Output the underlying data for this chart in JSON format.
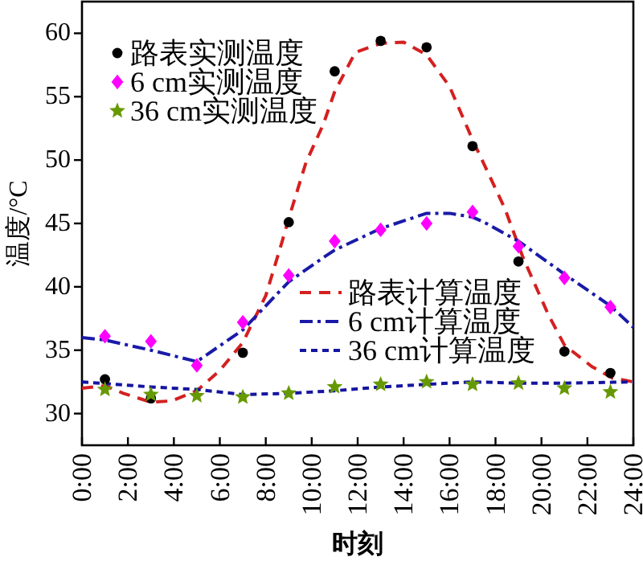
{
  "chart_data": {
    "type": "line",
    "xlabel": "时刻",
    "ylabel": "温度/°C",
    "xlim": [
      0,
      24
    ],
    "xticks": [
      {
        "value": 0,
        "label": "0:00"
      },
      {
        "value": 2,
        "label": "2:00"
      },
      {
        "value": 4,
        "label": "4:00"
      },
      {
        "value": 6,
        "label": "6:00"
      },
      {
        "value": 8,
        "label": "8:00"
      },
      {
        "value": 10,
        "label": "10:00"
      },
      {
        "value": 12,
        "label": "12:00"
      },
      {
        "value": 14,
        "label": "14:00"
      },
      {
        "value": 16,
        "label": "16:00"
      },
      {
        "value": 18,
        "label": "18:00"
      },
      {
        "value": 20,
        "label": "20:00"
      },
      {
        "value": 22,
        "label": "22:00"
      },
      {
        "value": 24,
        "label": "24:00"
      }
    ],
    "ylim": [
      27.5,
      62.5
    ],
    "yticks": [
      30,
      35,
      40,
      45,
      50,
      55,
      60
    ],
    "legend": [
      "top left",
      "bottom right"
    ],
    "x": [
      1,
      3,
      5,
      7,
      9,
      11,
      13,
      15,
      17,
      19,
      21,
      23
    ],
    "series": [
      {
        "name": "路表实测温度",
        "type": "scatter",
        "marker": "circle",
        "color": "#000000",
        "values": [
          32.7,
          31.2,
          null,
          34.8,
          45.1,
          57.0,
          59.4,
          58.9,
          51.1,
          42.0,
          34.9,
          33.2
        ]
      },
      {
        "name": "6 cm实测温度",
        "type": "scatter",
        "marker": "diamond",
        "color": "#ff00ff",
        "values": [
          36.1,
          35.7,
          33.8,
          37.2,
          40.9,
          43.6,
          44.5,
          45.0,
          45.9,
          43.2,
          40.7,
          38.4
        ]
      },
      {
        "name": "36 cm实测温度",
        "type": "scatter",
        "marker": "star",
        "color": "#669900",
        "values": [
          31.9,
          31.5,
          31.4,
          31.3,
          31.6,
          32.1,
          32.3,
          32.5,
          32.3,
          32.4,
          32.0,
          31.7
        ]
      },
      {
        "name": "路表计算温度",
        "line_style": "dashed",
        "color": "#d42020",
        "x": [
          0,
          1,
          1.8,
          3,
          3.9,
          5,
          6,
          7,
          8,
          8.7,
          9,
          9.75,
          10.5,
          11,
          11.9,
          13,
          14,
          15,
          16,
          17,
          18.4,
          19.2,
          20.3,
          21,
          22.2,
          23.1,
          24
        ],
        "values": [
          32.0,
          32.2,
          31.6,
          30.9,
          31.0,
          31.8,
          33.4,
          35.6,
          39.3,
          43.5,
          45.4,
          49.8,
          52.8,
          55.4,
          58.5,
          59.2,
          59.3,
          58.3,
          55.8,
          51.6,
          46.2,
          42.3,
          37.8,
          35.4,
          33.7,
          32.8,
          32.5
        ]
      },
      {
        "name": "6 cm计算温度",
        "line_style": "dashdot",
        "color": "#1a1aa8",
        "x": [
          0,
          1,
          3,
          5,
          7,
          9,
          10.5,
          11,
          13,
          15,
          16,
          17,
          17.5,
          19,
          21,
          23,
          24
        ],
        "values": [
          36.0,
          35.8,
          35.0,
          34.1,
          36.6,
          40.4,
          42.3,
          42.9,
          44.6,
          45.8,
          45.8,
          45.5,
          45.1,
          43.6,
          41.0,
          38.5,
          36.8
        ]
      },
      {
        "name": "36 cm计算温度",
        "line_style": "dotted",
        "color": "#1515a0",
        "x": [
          0,
          3,
          5,
          7,
          9,
          11,
          13,
          15,
          17,
          19,
          21,
          24
        ],
        "values": [
          32.5,
          32.1,
          31.9,
          31.5,
          31.6,
          31.8,
          32.1,
          32.3,
          32.5,
          32.4,
          32.4,
          32.5
        ]
      }
    ]
  }
}
